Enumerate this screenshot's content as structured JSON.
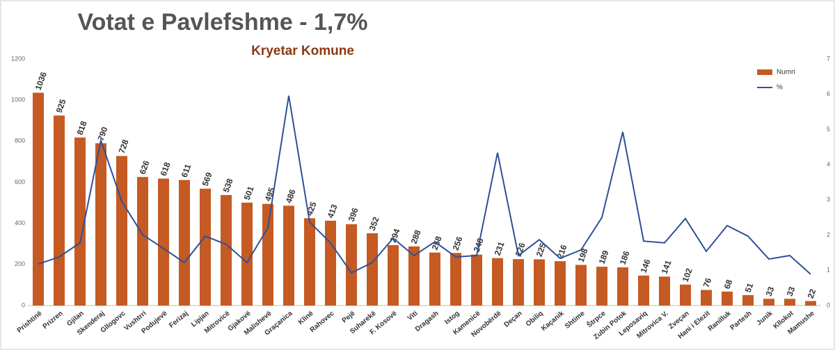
{
  "chart_data": {
    "type": "bar_line",
    "title": "Votat e Pavlefshme - 1,7%",
    "subtitle": "Kryetar Komune",
    "categories": [
      "Prishtinë",
      "Prizren",
      "Gjilan",
      "Skenderaj",
      "Gllogovc",
      "Vushtrri",
      "Podujevë",
      "Ferizaj",
      "Lipjan",
      "Mitrovicë",
      "Gjakovë",
      "Malishevë",
      "Graçanica",
      "Klinë",
      "Rahovec",
      "Pejë",
      "Suharekë",
      "F. Kosovë",
      "Viti",
      "Dragash",
      "Istog",
      "Kamenicë",
      "Novobërdë",
      "Deçan",
      "Obiliq",
      "Kaçanik",
      "Shtime",
      "Štrpce",
      "Zubin Potok",
      "Leposaviq",
      "Mitrovica V.",
      "Zveçan",
      "Hani i Elezit",
      "Ranilluk",
      "Partesh",
      "Junik",
      "Kllokot",
      "Mamushe"
    ],
    "series": [
      {
        "name": "Numri",
        "color": "#c55a22",
        "values": [
          1036,
          925,
          818,
          790,
          728,
          626,
          618,
          611,
          569,
          538,
          501,
          495,
          486,
          425,
          413,
          396,
          352,
          294,
          288,
          258,
          256,
          248,
          231,
          226,
          225,
          216,
          198,
          189,
          186,
          146,
          141,
          102,
          76,
          68,
          51,
          33,
          33,
          22
        ]
      },
      {
        "name": "%",
        "color": "#2e4f9a",
        "axis": "y2",
        "values": [
          1.18,
          1.38,
          1.78,
          4.69,
          2.96,
          2.01,
          1.62,
          1.22,
          1.97,
          1.74,
          1.22,
          2.21,
          5.96,
          2.37,
          1.78,
          0.93,
          1.22,
          1.91,
          1.42,
          1.81,
          1.38,
          1.42,
          4.34,
          1.42,
          1.87,
          1.34,
          1.58,
          2.5,
          4.93,
          1.83,
          1.78,
          2.47,
          1.54,
          2.27,
          1.97,
          1.32,
          1.42,
          0.89
        ]
      }
    ],
    "ylim": [
      0,
      1200
    ],
    "yticks": [
      0,
      200,
      400,
      600,
      800,
      1000,
      1200
    ],
    "y2lim": [
      0,
      7
    ],
    "y2ticks": [
      0,
      1,
      2,
      3,
      4,
      5,
      6,
      7
    ],
    "legend": "top-right"
  }
}
